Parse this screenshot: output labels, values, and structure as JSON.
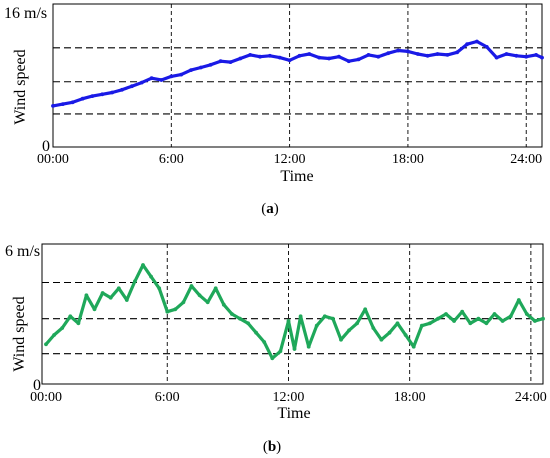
{
  "chart_data": [
    {
      "type": "line",
      "panel_label": "(a)",
      "panel_letter": "a",
      "xlabel": "Time",
      "ylabel": "Wind speed",
      "ytick_labels": [
        "16 m/s",
        "0"
      ],
      "ylim": [
        0,
        16
      ],
      "xlim": [
        0,
        24.8
      ],
      "x_tick_values": [
        0,
        6,
        12,
        18,
        24
      ],
      "x_tick_labels": [
        "00:00",
        "6:00",
        "12:00",
        "18:00",
        "24:00"
      ],
      "reference_lines": [
        3.7,
        7.3,
        11.1
      ],
      "vertical_gridlines": [
        6,
        12,
        18,
        24
      ],
      "series_color": "#1a1ae6",
      "series": [
        {
          "name": "",
          "x": [
            0,
            0.5,
            1,
            1.5,
            2,
            2.5,
            3,
            3.5,
            4,
            4.5,
            5,
            5.5,
            6,
            6.5,
            7,
            7.5,
            8,
            8.5,
            9,
            9.5,
            10,
            10.5,
            11,
            11.5,
            12,
            12.5,
            13,
            13.5,
            14,
            14.5,
            15,
            15.5,
            16,
            16.5,
            17,
            17.5,
            18,
            18.5,
            19,
            19.5,
            20,
            20.5,
            21,
            21.5,
            22,
            22.5,
            23,
            23.5,
            24,
            24.5,
            24.8
          ],
          "values": [
            4.6,
            4.8,
            5.0,
            5.4,
            5.7,
            5.9,
            6.1,
            6.4,
            6.8,
            7.2,
            7.7,
            7.5,
            7.9,
            8.1,
            8.6,
            8.9,
            9.2,
            9.6,
            9.5,
            9.9,
            10.3,
            10.1,
            10.2,
            10.0,
            9.7,
            10.2,
            10.4,
            10.0,
            9.9,
            10.1,
            9.6,
            9.8,
            10.3,
            10.1,
            10.5,
            10.8,
            10.7,
            10.4,
            10.2,
            10.4,
            10.3,
            10.6,
            11.5,
            11.8,
            11.2,
            10.0,
            10.4,
            10.2,
            10.1,
            10.3,
            10.0
          ]
        }
      ]
    },
    {
      "type": "line",
      "panel_label": "(b)",
      "panel_letter": "b",
      "xlabel": "Time",
      "ylabel": "Wind speed",
      "ytick_labels": [
        "6 m/s",
        "0"
      ],
      "ylim": [
        0,
        6
      ],
      "xlim": [
        -0.2,
        24.6
      ],
      "x_tick_values": [
        0,
        6,
        12,
        18,
        24
      ],
      "x_tick_labels": [
        "00:00",
        "6:00",
        "12:00",
        "18:00",
        "24:00"
      ],
      "reference_lines": [
        1.3,
        2.8,
        4.35
      ],
      "vertical_gridlines": [
        6,
        12,
        18,
        24
      ],
      "series_color": "#1fa85a",
      "series": [
        {
          "name": "",
          "x": [
            0,
            0.4,
            0.8,
            1.2,
            1.6,
            2.0,
            2.4,
            2.8,
            3.2,
            3.6,
            4.0,
            4.4,
            4.8,
            5.2,
            5.6,
            6.0,
            6.4,
            6.8,
            7.2,
            7.6,
            8.0,
            8.4,
            8.8,
            9.2,
            9.6,
            10.0,
            10.4,
            10.8,
            11.2,
            11.6,
            12.0,
            12.3,
            12.6,
            13.0,
            13.4,
            13.8,
            14.2,
            14.6,
            15.0,
            15.4,
            15.8,
            16.2,
            16.6,
            17.0,
            17.4,
            17.8,
            18.2,
            18.6,
            19.0,
            19.4,
            19.8,
            20.2,
            20.6,
            21.0,
            21.4,
            21.8,
            22.2,
            22.6,
            23.0,
            23.4,
            23.8,
            24.2,
            24.6
          ],
          "values": [
            1.7,
            2.1,
            2.4,
            2.9,
            2.6,
            3.8,
            3.2,
            3.9,
            3.7,
            4.1,
            3.6,
            4.4,
            5.1,
            4.6,
            4.1,
            3.1,
            3.2,
            3.5,
            4.2,
            3.8,
            3.5,
            4.1,
            3.4,
            3.0,
            2.8,
            2.6,
            2.2,
            1.8,
            1.1,
            1.4,
            2.7,
            1.5,
            2.9,
            1.6,
            2.5,
            2.9,
            2.8,
            1.9,
            2.3,
            2.6,
            3.2,
            2.4,
            1.9,
            2.2,
            2.6,
            2.1,
            1.6,
            2.5,
            2.6,
            2.8,
            3.0,
            2.7,
            3.1,
            2.6,
            2.8,
            2.6,
            3.0,
            2.7,
            2.9,
            3.6,
            3.0,
            2.7,
            2.8
          ]
        }
      ]
    }
  ]
}
